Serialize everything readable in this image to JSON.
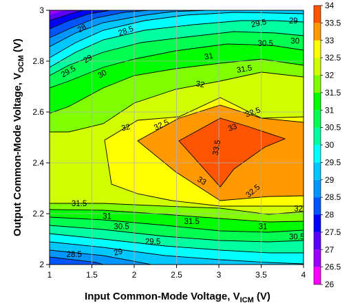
{
  "chart_data": {
    "type": "heatmap",
    "subtype": "filled-contour",
    "title": "",
    "xlabel": {
      "main": "Input Common-Mode Voltage, V",
      "sub": "ICM",
      "unit": " (V)"
    },
    "ylabel": {
      "main": "Output Common-Mode Voltage, V",
      "sub": "OCM",
      "unit": " (V)"
    },
    "xlim": [
      1,
      4
    ],
    "ylim": [
      2,
      3
    ],
    "xticks": [
      "1",
      "1.5",
      "2",
      "2.5",
      "3",
      "3.5",
      "4"
    ],
    "yticks": [
      "2",
      "2.2",
      "2.4",
      "2.6",
      "2.8",
      "3"
    ],
    "grid": true,
    "colorbar": {
      "levels": [
        26,
        26.5,
        27,
        27.5,
        28,
        28.5,
        29,
        29.5,
        30,
        30.5,
        31,
        31.5,
        32,
        32.5,
        33,
        33.5,
        34
      ],
      "labels": [
        "26",
        "26.5",
        "27",
        "27.5",
        "28",
        "28.5",
        "29",
        "29.5",
        "30",
        "30.5",
        "31",
        "31.5",
        "32",
        "32.5",
        "33",
        "33.5",
        "34"
      ],
      "colors": [
        "#ff00ff",
        "#9b00ff",
        "#5a00ff",
        "#0000ff",
        "#0055ff",
        "#0096ff",
        "#00c8ff",
        "#00ffff",
        "#00ffa0",
        "#00ff50",
        "#00ff00",
        "#7fff00",
        "#d2ff00",
        "#ffff00",
        "#ff9900",
        "#ff5500"
      ]
    },
    "contour_labels": [
      {
        "text": "28",
        "x": 1.38,
        "y": 2.93,
        "angle": -30
      },
      {
        "text": "28.5",
        "x": 1.9,
        "y": 2.92,
        "angle": -20
      },
      {
        "text": "29",
        "x": 1.45,
        "y": 2.81,
        "angle": -30
      },
      {
        "text": "29.5",
        "x": 1.22,
        "y": 2.76,
        "angle": -30
      },
      {
        "text": "30",
        "x": 1.62,
        "y": 2.75,
        "angle": -30
      },
      {
        "text": "31",
        "x": 2.88,
        "y": 2.82,
        "angle": -10
      },
      {
        "text": "31.5",
        "x": 3.3,
        "y": 2.77,
        "angle": -10
      },
      {
        "text": "32",
        "x": 2.78,
        "y": 2.71,
        "angle": 10
      },
      {
        "text": "32.5",
        "x": 3.4,
        "y": 2.6,
        "angle": -20
      },
      {
        "text": "29.5",
        "x": 3.47,
        "y": 2.95,
        "angle": -12
      },
      {
        "text": "29",
        "x": 3.88,
        "y": 2.96,
        "angle": 0
      },
      {
        "text": "30.5",
        "x": 3.55,
        "y": 2.87,
        "angle": 0
      },
      {
        "text": "30",
        "x": 3.9,
        "y": 2.88,
        "angle": 0
      },
      {
        "text": "32",
        "x": 1.9,
        "y": 2.54,
        "angle": -12
      },
      {
        "text": "32.5",
        "x": 2.32,
        "y": 2.55,
        "angle": -25
      },
      {
        "text": "33",
        "x": 3.16,
        "y": 2.54,
        "angle": -20
      },
      {
        "text": "33.5",
        "x": 2.97,
        "y": 2.46,
        "angle": -80
      },
      {
        "text": "33",
        "x": 2.8,
        "y": 2.33,
        "angle": 30
      },
      {
        "text": "32.5",
        "x": 3.4,
        "y": 2.29,
        "angle": -40
      },
      {
        "text": "32",
        "x": 3.94,
        "y": 2.22,
        "angle": 0
      },
      {
        "text": "31.5",
        "x": 1.35,
        "y": 2.24,
        "angle": 0
      },
      {
        "text": "31",
        "x": 1.68,
        "y": 2.19,
        "angle": 0
      },
      {
        "text": "30.5",
        "x": 1.85,
        "y": 2.15,
        "angle": 0
      },
      {
        "text": "31.5",
        "x": 2.68,
        "y": 2.17,
        "angle": 0
      },
      {
        "text": "31",
        "x": 3.52,
        "y": 2.15,
        "angle": 0
      },
      {
        "text": "30.5",
        "x": 3.92,
        "y": 2.11,
        "angle": 0
      },
      {
        "text": "29.5",
        "x": 2.22,
        "y": 2.09,
        "angle": 0
      },
      {
        "text": "29",
        "x": 1.81,
        "y": 2.05,
        "angle": -15
      },
      {
        "text": "28.5",
        "x": 1.29,
        "y": 2.04,
        "angle": 0
      }
    ]
  }
}
